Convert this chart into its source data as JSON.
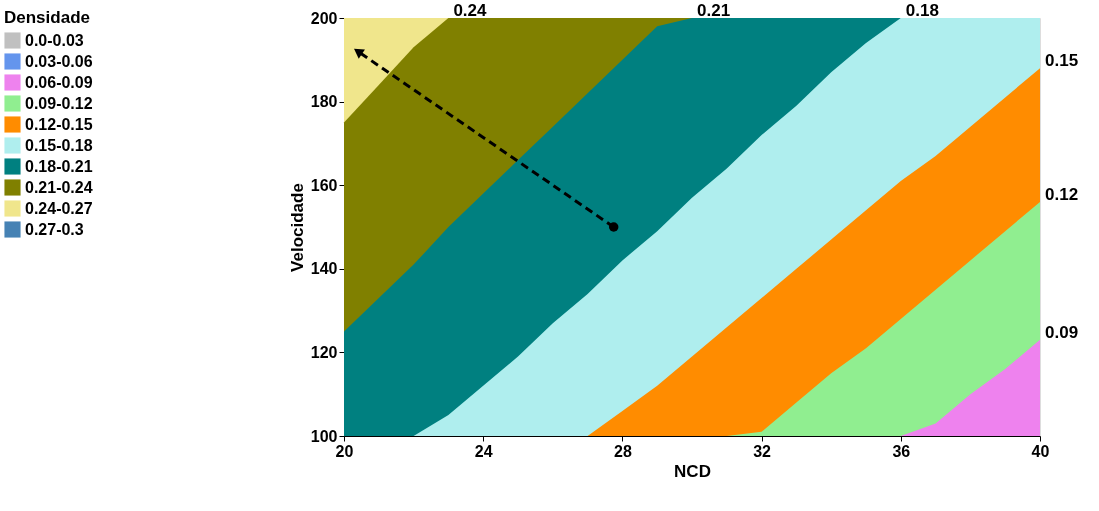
{
  "chart_data": {
    "type": "area",
    "xlabel": "NCD",
    "ylabel": "Velocidade",
    "legend_title": "Densidade",
    "legend": "left",
    "x": [
      20,
      21,
      22,
      23,
      24,
      25,
      26,
      27,
      28,
      29,
      30,
      31,
      32,
      33,
      34,
      35,
      36,
      37,
      38,
      39,
      40
    ],
    "xlim": [
      20,
      40
    ],
    "xticks": [
      20,
      24,
      28,
      32,
      36,
      40
    ],
    "ylim": [
      100,
      200
    ],
    "yticks": [
      100,
      120,
      140,
      160,
      180,
      200
    ],
    "grid": false,
    "series": [
      {
        "name": "0.0-0.03",
        "color": "#c0c0c0",
        "values": [
          null,
          null,
          null,
          null,
          null,
          null,
          null,
          null,
          null,
          null,
          null,
          null,
          null,
          null,
          null,
          null,
          null,
          null,
          null,
          null,
          null
        ]
      },
      {
        "name": "0.03-0.06",
        "color": "#6495ed",
        "values": [
          null,
          null,
          null,
          null,
          null,
          null,
          null,
          null,
          null,
          null,
          null,
          null,
          null,
          null,
          null,
          null,
          null,
          null,
          null,
          null,
          null
        ]
      },
      {
        "name": "0.06-0.09",
        "color": "#ee82ee",
        "values": [
          100,
          100,
          100,
          100,
          100,
          100,
          100,
          100,
          100,
          100,
          100,
          100,
          100,
          100,
          100,
          100,
          100,
          103,
          110,
          116,
          123
        ]
      },
      {
        "name": "0.09-0.12",
        "color": "#90ee90",
        "values": [
          100,
          100,
          100,
          100,
          100,
          100,
          100,
          100,
          100,
          100,
          100,
          100,
          101,
          108,
          115,
          121,
          128,
          135,
          142,
          149,
          156
        ]
      },
      {
        "name": "0.12-0.15",
        "color": "#ff8c00",
        "values": [
          100,
          100,
          100,
          100,
          100,
          100,
          100,
          100,
          106,
          112,
          119,
          126,
          133,
          140,
          147,
          154,
          161,
          167,
          174,
          181,
          188
        ]
      },
      {
        "name": "0.15-0.18",
        "color": "#afeeee",
        "values": [
          100,
          100,
          100,
          105,
          112,
          119,
          127,
          134,
          142,
          149,
          157,
          164,
          172,
          179,
          187,
          194,
          200,
          200,
          200,
          200,
          200
        ]
      },
      {
        "name": "0.18-0.21",
        "color": "#008080",
        "values": [
          125,
          133,
          141,
          150,
          158,
          166,
          174,
          182,
          190,
          198,
          200,
          200,
          200,
          200,
          200,
          200,
          200,
          null,
          null,
          null,
          null
        ]
      },
      {
        "name": "0.21-0.24",
        "color": "#808000",
        "values": [
          175,
          184,
          193,
          200,
          200,
          200,
          200,
          200,
          200,
          200,
          200,
          null,
          null,
          null,
          null,
          null,
          null,
          null,
          null,
          null,
          null
        ]
      },
      {
        "name": "0.24-0.27",
        "color": "#f0e68c",
        "values": [
          200,
          200,
          200,
          200,
          null,
          null,
          null,
          null,
          null,
          null,
          null,
          null,
          null,
          null,
          null,
          null,
          null,
          null,
          null,
          null,
          null
        ]
      },
      {
        "name": "0.27-0.3",
        "color": "#4682b4",
        "values": [
          null,
          null,
          null,
          null,
          null,
          null,
          null,
          null,
          null,
          null,
          null,
          null,
          null,
          null,
          null,
          null,
          null,
          null,
          null,
          null,
          null
        ]
      },
      {
        "type": "line",
        "x": [
          27.75,
          20.4
        ],
        "values": [
          150,
          192
        ],
        "color": "#000000",
        "line_style": "dashed",
        "marker": "circle"
      }
    ],
    "annotations": [
      {
        "text": "0.24",
        "x": 23,
        "y": 200
      },
      {
        "text": "0.21",
        "x": 30,
        "y": 200
      },
      {
        "text": "0.18",
        "x": 36,
        "y": 200
      },
      {
        "text": "0.15",
        "x": 40,
        "y": 188
      },
      {
        "text": "0.12",
        "x": 40,
        "y": 156
      },
      {
        "text": "0.09",
        "x": 40,
        "y": 123
      }
    ]
  }
}
